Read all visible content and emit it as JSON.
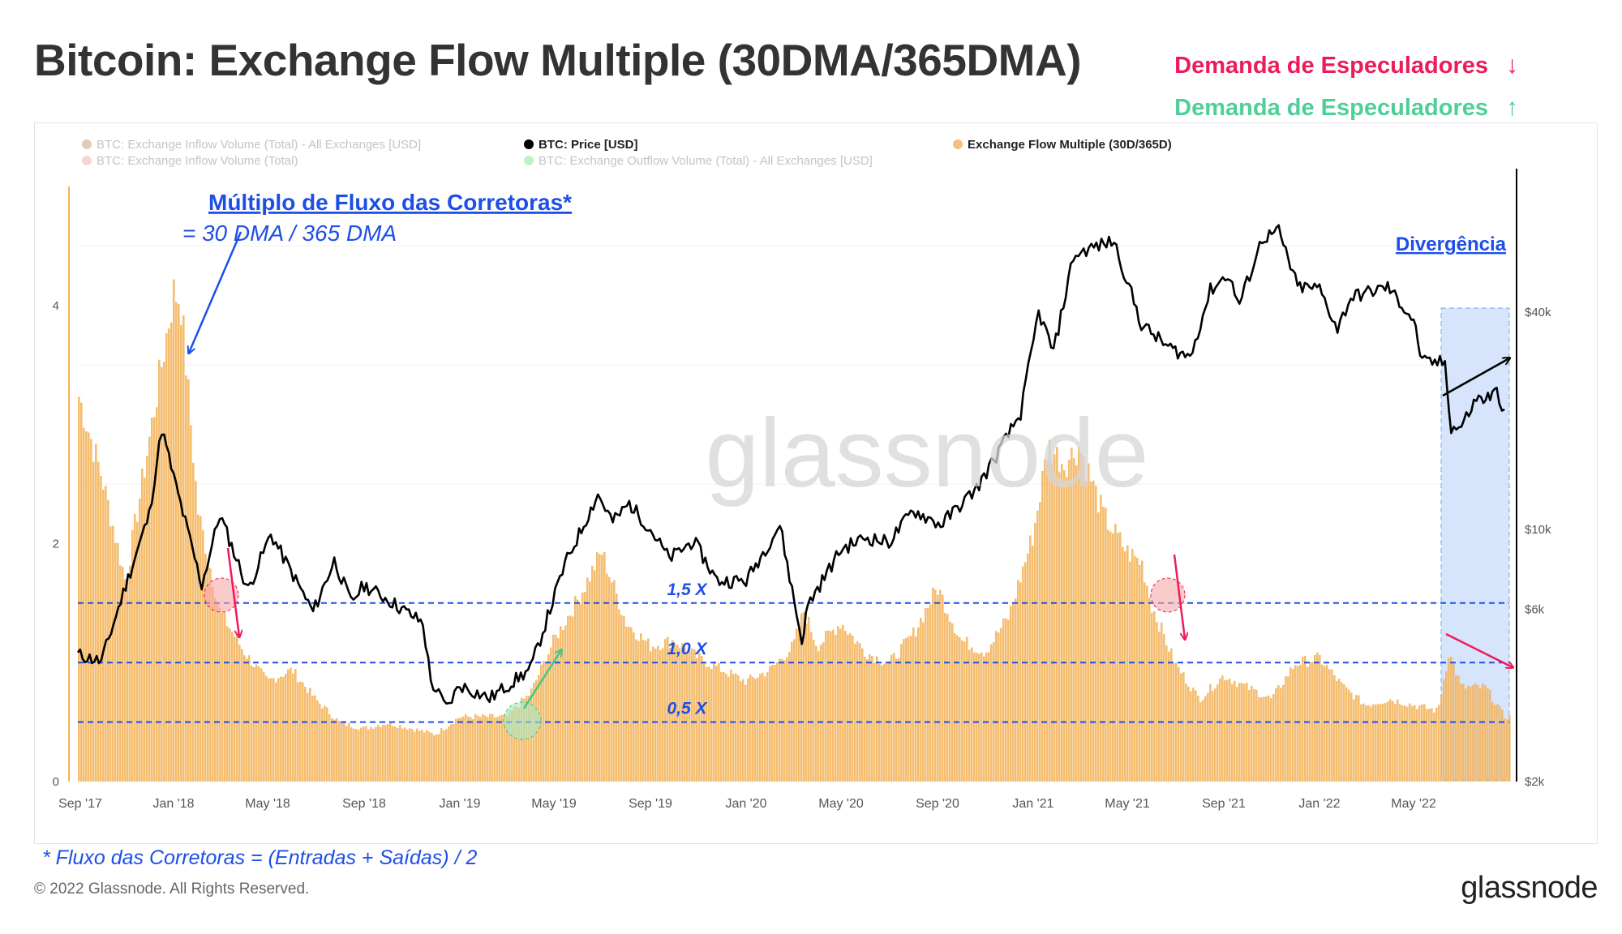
{
  "header": {
    "title": "Bitcoin: Exchange Flow Multiple (30DMA/365DMA)",
    "demand_down": "Demanda de Especuladores",
    "demand_down_arrow": "↓",
    "demand_up": "Demanda de Especuladores",
    "demand_up_arrow": "↑"
  },
  "legend": [
    {
      "label": "BTC: Exchange Inflow Volume (Total) - All Exchanges [USD]",
      "color": "#c9a07e",
      "faded": true
    },
    {
      "label": "BTC: Exchange Inflow Volume (Total)",
      "color": "#f2b3b3",
      "faded": true
    },
    {
      "label": "BTC: Price [USD]",
      "color": "#000000",
      "faded": false
    },
    {
      "label": "BTC: Exchange Outflow Volume (Total) - All Exchanges [USD]",
      "color": "#8ee68e",
      "faded": true
    },
    {
      "label": "Exchange Flow Multiple (30D/365D)",
      "color": "#f4c17c",
      "faded": false
    }
  ],
  "annotations": {
    "formula_title": "Múltiplo de Fluxo das Corretoras*",
    "formula_body": "= 30 DMA / 365 DMA",
    "divergence": "Divergência",
    "level_15": "1,5 X",
    "level_10": "1,0 X",
    "level_05": "0,5 X"
  },
  "footer": {
    "footnote": "* Fluxo das Corretoras = (Entradas + Saídas) / 2",
    "copyright": "© 2022 Glassnode. All Rights Reserved.",
    "brand": "glassnode"
  },
  "colors": {
    "bars": "#f4b45c",
    "price": "#000000",
    "annotation_blue": "#1d4fe6",
    "red": "#ee1b5a",
    "green": "#3cc98a",
    "highlight": "#cfe0fb"
  },
  "chart_data": {
    "type": "bar",
    "x_ticks": [
      "Sep '17",
      "Jan '18",
      "May '18",
      "Sep '18",
      "Jan '19",
      "May '19",
      "Sep '19",
      "Jan '20",
      "May '20",
      "Sep '20",
      "Jan '21",
      "May '21",
      "Sep '21",
      "Jan '22",
      "May '22"
    ],
    "y_left_ticks": [
      "0",
      "2",
      "4"
    ],
    "y_left_range": [
      0,
      5.15
    ],
    "y_right_ticks": [
      "$2k",
      "$6k",
      "$10k",
      "$40k"
    ],
    "y_right_scale": "log",
    "y_right_range": [
      2000,
      100000
    ],
    "reference_lines": [
      1.5,
      1.0,
      0.5
    ],
    "series": [
      {
        "name": "Exchange Flow Multiple (30D/365D)",
        "kind": "bars",
        "x": [
          "2017-09-01",
          "2017-10-01",
          "2017-11-01",
          "2017-12-01",
          "2018-01-01",
          "2018-01-10",
          "2018-02-01",
          "2018-03-01",
          "2018-04-01",
          "2018-05-01",
          "2018-06-01",
          "2018-07-01",
          "2018-08-01",
          "2018-09-01",
          "2018-10-01",
          "2018-11-01",
          "2018-12-01",
          "2019-01-01",
          "2019-02-01",
          "2019-03-01",
          "2019-04-01",
          "2019-05-01",
          "2019-06-01",
          "2019-07-01",
          "2019-08-01",
          "2019-09-01",
          "2019-10-01",
          "2019-11-01",
          "2019-12-01",
          "2020-01-01",
          "2020-02-01",
          "2020-03-01",
          "2020-03-15",
          "2020-04-01",
          "2020-05-01",
          "2020-06-01",
          "2020-07-01",
          "2020-08-01",
          "2020-09-01",
          "2020-10-01",
          "2020-11-01",
          "2020-12-01",
          "2021-01-01",
          "2021-01-20",
          "2021-02-10",
          "2021-03-01",
          "2021-04-01",
          "2021-05-01",
          "2021-05-20",
          "2021-06-01",
          "2021-07-01",
          "2021-08-01",
          "2021-09-01",
          "2021-10-01",
          "2021-11-01",
          "2021-12-01",
          "2022-01-01",
          "2022-02-01",
          "2022-03-01",
          "2022-04-01",
          "2022-05-01",
          "2022-06-01",
          "2022-06-15",
          "2022-07-01",
          "2022-08-01",
          "2022-08-25"
        ],
        "values": [
          3.3,
          2.6,
          1.7,
          2.9,
          4.15,
          4.1,
          2.3,
          1.45,
          1.1,
          0.85,
          0.95,
          0.7,
          0.5,
          0.45,
          0.5,
          0.45,
          0.4,
          0.55,
          0.55,
          0.55,
          0.75,
          1.2,
          1.55,
          1.95,
          1.35,
          1.15,
          1.2,
          1.05,
          0.95,
          0.85,
          0.95,
          1.15,
          1.45,
          1.15,
          1.35,
          1.1,
          1.0,
          1.25,
          1.65,
          1.2,
          1.1,
          1.4,
          2.1,
          2.85,
          2.7,
          2.85,
          2.25,
          1.95,
          1.85,
          1.5,
          1.0,
          0.7,
          0.9,
          0.8,
          0.7,
          1.0,
          1.05,
          0.8,
          0.65,
          0.7,
          0.65,
          0.6,
          1.1,
          0.8,
          0.8,
          0.55
        ]
      },
      {
        "name": "BTC: Price [USD]",
        "kind": "line",
        "x": [
          "2017-09-01",
          "2017-10-01",
          "2017-11-01",
          "2017-12-01",
          "2017-12-17",
          "2018-01-01",
          "2018-02-06",
          "2018-03-01",
          "2018-04-06",
          "2018-05-05",
          "2018-06-28",
          "2018-07-25",
          "2018-08-15",
          "2018-09-01",
          "2018-10-01",
          "2018-11-15",
          "2018-11-25",
          "2018-12-15",
          "2019-01-01",
          "2019-02-08",
          "2019-04-01",
          "2019-05-15",
          "2019-06-26",
          "2019-07-15",
          "2019-08-05",
          "2019-09-01",
          "2019-09-25",
          "2019-10-26",
          "2019-11-25",
          "2020-01-01",
          "2020-02-13",
          "2020-03-12",
          "2020-03-20",
          "2020-05-01",
          "2020-06-01",
          "2020-07-01",
          "2020-08-01",
          "2020-09-05",
          "2020-10-21",
          "2020-11-15",
          "2020-12-16",
          "2021-01-08",
          "2021-01-27",
          "2021-02-21",
          "2021-03-13",
          "2021-04-14",
          "2021-05-19",
          "2021-06-22",
          "2021-07-20",
          "2021-08-15",
          "2021-09-06",
          "2021-09-21",
          "2021-10-20",
          "2021-11-10",
          "2021-12-04",
          "2022-01-01",
          "2022-01-24",
          "2022-02-10",
          "2022-03-29",
          "2022-05-01",
          "2022-05-12",
          "2022-06-10",
          "2022-06-18",
          "2022-07-01",
          "2022-07-20",
          "2022-08-01",
          "2022-08-15",
          "2022-08-25"
        ],
        "values": [
          4500,
          4300,
          7000,
          11000,
          19000,
          14000,
          7000,
          11000,
          6800,
          9700,
          5900,
          8200,
          6300,
          7000,
          6400,
          5500,
          3800,
          3200,
          3700,
          3400,
          4100,
          8000,
          12500,
          10500,
          11800,
          10000,
          8300,
          9300,
          7200,
          7200,
          10300,
          4900,
          6200,
          8800,
          9500,
          9200,
          11300,
          10300,
          13000,
          16000,
          21000,
          40000,
          31000,
          57000,
          60000,
          63000,
          37000,
          32000,
          30000,
          46000,
          51000,
          42000,
          64000,
          67000,
          47000,
          46500,
          36000,
          44000,
          47000,
          38000,
          29000,
          29000,
          19000,
          19300,
          23000,
          23000,
          24000,
          21500
        ]
      }
    ]
  }
}
